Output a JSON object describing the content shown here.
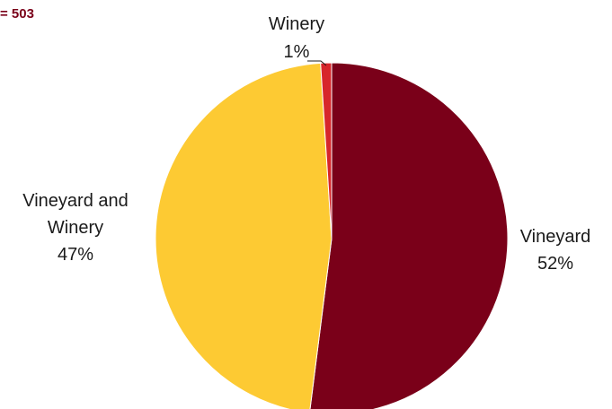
{
  "note": "= 503",
  "colors": {
    "note": "#7a0019",
    "Vineyard": "#7a0019",
    "Vineyard and Winery": "#fdca33",
    "Winery": "#d7262b"
  },
  "chart_data": {
    "type": "pie",
    "title": "",
    "slices": [
      {
        "name": "Vineyard",
        "value": 52,
        "label": "52%"
      },
      {
        "name": "Vineyard and Winery",
        "value": 47,
        "label": "47%"
      },
      {
        "name": "Winery",
        "value": 1,
        "label": "1%"
      }
    ],
    "start": "top, clockwise"
  }
}
